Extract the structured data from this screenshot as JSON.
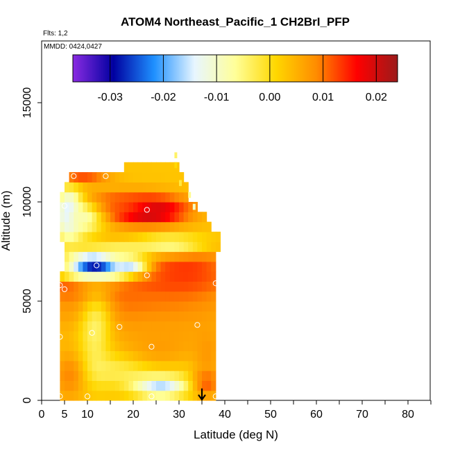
{
  "chart_data": {
    "type": "heatmap",
    "title": "ATOM4 Northeast_Pacific_1 CH2BrI_PFP",
    "flights_note": "Flts: 1,2",
    "dates_note": "MMDD: 0424,0427",
    "xlabel": "Latitude (deg N)",
    "ylabel": "Altitude (m)",
    "xlim": [
      0,
      85
    ],
    "ylim": [
      0,
      17500
    ],
    "x_ticks": [
      0,
      5,
      10,
      20,
      30,
      40,
      50,
      60,
      70,
      80
    ],
    "y_ticks": [
      0,
      5000,
      10000,
      15000
    ],
    "colorbar": {
      "range": [
        -0.037,
        0.024
      ],
      "ticks": [
        -0.03,
        -0.02,
        -0.01,
        0.0,
        0.01,
        0.02
      ],
      "tick_labels": [
        "-0.03",
        "-0.02",
        "-0.01",
        "0.00",
        "0.01",
        "0.02"
      ],
      "colors": [
        "#8a2be2",
        "#0000a0",
        "#1e90ff",
        "#e8f6ff",
        "#ffff99",
        "#ffd700",
        "#ff8c00",
        "#ff0000",
        "#9b1b1b"
      ]
    },
    "cell_size": {
      "lat": 1.0,
      "alt": 500
    },
    "alt_extents": [
      {
        "alt": 0,
        "lat_min": 4,
        "lat_max": 38
      },
      {
        "alt": 500,
        "lat_min": 4,
        "lat_max": 38
      },
      {
        "alt": 1000,
        "lat_min": 4,
        "lat_max": 38
      },
      {
        "alt": 1500,
        "lat_min": 4,
        "lat_max": 38
      },
      {
        "alt": 2000,
        "lat_min": 4,
        "lat_max": 38
      },
      {
        "alt": 2500,
        "lat_min": 4,
        "lat_max": 38
      },
      {
        "alt": 3000,
        "lat_min": 4,
        "lat_max": 38
      },
      {
        "alt": 3500,
        "lat_min": 4,
        "lat_max": 38
      },
      {
        "alt": 4000,
        "lat_min": 4,
        "lat_max": 38
      },
      {
        "alt": 4500,
        "lat_min": 4,
        "lat_max": 38
      },
      {
        "alt": 5000,
        "lat_min": 4,
        "lat_max": 38
      },
      {
        "alt": 5500,
        "lat_min": 4,
        "lat_max": 38
      },
      {
        "alt": 6000,
        "lat_min": 4,
        "lat_max": 38
      },
      {
        "alt": 6500,
        "lat_min": 5,
        "lat_max": 38
      },
      {
        "alt": 7000,
        "lat_min": 5,
        "lat_max": 38
      },
      {
        "alt": 7500,
        "lat_min": 5,
        "lat_max": 39
      },
      {
        "alt": 8000,
        "lat_min": 4,
        "lat_max": 39
      },
      {
        "alt": 8500,
        "lat_min": 4,
        "lat_max": 37
      },
      {
        "alt": 9000,
        "lat_min": 4,
        "lat_max": 36
      },
      {
        "alt": 9500,
        "lat_min": 4,
        "lat_max": 34
      },
      {
        "alt": 10000,
        "lat_min": 4,
        "lat_max": 32
      },
      {
        "alt": 10500,
        "lat_min": 5,
        "lat_max": 32
      },
      {
        "alt": 11000,
        "lat_min": 6,
        "lat_max": 31
      },
      {
        "alt": 11500,
        "lat_min": 18,
        "lat_max": 30
      }
    ],
    "features": [
      {
        "lat": 22,
        "alt": 6300,
        "slat": 9,
        "salt": 900,
        "val": 0.025
      },
      {
        "lat": 14,
        "alt": 5900,
        "slat": 14,
        "salt": 450,
        "val": 0.017
      },
      {
        "lat": 28,
        "alt": 6800,
        "slat": 8,
        "salt": 700,
        "val": 0.014
      },
      {
        "lat": 21,
        "alt": 4900,
        "slat": 14,
        "salt": 1000,
        "val": 0.011
      },
      {
        "lat": 23,
        "alt": 9600,
        "slat": 6,
        "salt": 500,
        "val": 0.026
      },
      {
        "lat": 15,
        "alt": 9900,
        "slat": 8,
        "salt": 450,
        "val": 0.012
      },
      {
        "lat": 6,
        "alt": 9400,
        "slat": 2,
        "salt": 900,
        "val": -0.02
      },
      {
        "lat": 9,
        "alt": 9200,
        "slat": 3,
        "salt": 600,
        "val": -0.008
      },
      {
        "lat": 12,
        "alt": 6900,
        "slat": 4,
        "salt": 350,
        "val": -0.045
      },
      {
        "lat": 19,
        "alt": 6900,
        "slat": 3,
        "salt": 300,
        "val": -0.02
      },
      {
        "lat": 12,
        "alt": 6300,
        "slat": 6,
        "salt": 300,
        "val": -0.01
      },
      {
        "lat": 17,
        "alt": 7600,
        "slat": 8,
        "salt": 300,
        "val": -0.004
      },
      {
        "lat": 28,
        "alt": 7900,
        "slat": 6,
        "salt": 350,
        "val": -0.006
      },
      {
        "lat": 9,
        "alt": 11300,
        "slat": 4,
        "salt": 300,
        "val": 0.012
      },
      {
        "lat": 12,
        "alt": 3300,
        "slat": 2.5,
        "salt": 1400,
        "val": -0.008
      },
      {
        "lat": 22,
        "alt": 1700,
        "slat": 8,
        "salt": 600,
        "val": -0.012
      },
      {
        "lat": 26,
        "alt": 800,
        "slat": 4,
        "salt": 400,
        "val": -0.028
      },
      {
        "lat": 36,
        "alt": 1000,
        "slat": 2,
        "salt": 500,
        "val": 0.014
      },
      {
        "lat": 36,
        "alt": 2500,
        "slat": 2,
        "salt": 900,
        "val": 0.008
      },
      {
        "lat": 6,
        "alt": 1300,
        "slat": 2.5,
        "salt": 900,
        "val": 0.009
      },
      {
        "lat": 26,
        "alt": 2800,
        "slat": 9,
        "salt": 1400,
        "val": 0.007
      }
    ],
    "base_value": 0.003,
    "sample_points": [
      {
        "lat": 7,
        "alt": 11300
      },
      {
        "lat": 14,
        "alt": 11300
      },
      {
        "lat": 5,
        "alt": 9800
      },
      {
        "lat": 23,
        "alt": 9600
      },
      {
        "lat": 12,
        "alt": 6800
      },
      {
        "lat": 23,
        "alt": 6300
      },
      {
        "lat": 4,
        "alt": 5800
      },
      {
        "lat": 5,
        "alt": 5600
      },
      {
        "lat": 38,
        "alt": 5900
      },
      {
        "lat": 17,
        "alt": 3700
      },
      {
        "lat": 34,
        "alt": 3800
      },
      {
        "lat": 11,
        "alt": 3400
      },
      {
        "lat": 4,
        "alt": 3200
      },
      {
        "lat": 24,
        "alt": 2700
      },
      {
        "lat": 10,
        "alt": 200
      },
      {
        "lat": 24,
        "alt": 200
      },
      {
        "lat": 38,
        "alt": 200
      },
      {
        "lat": 4,
        "alt": 200
      }
    ],
    "arrow_marker": {
      "lat": 35,
      "alt_top": 600,
      "alt_bottom": 0
    }
  }
}
